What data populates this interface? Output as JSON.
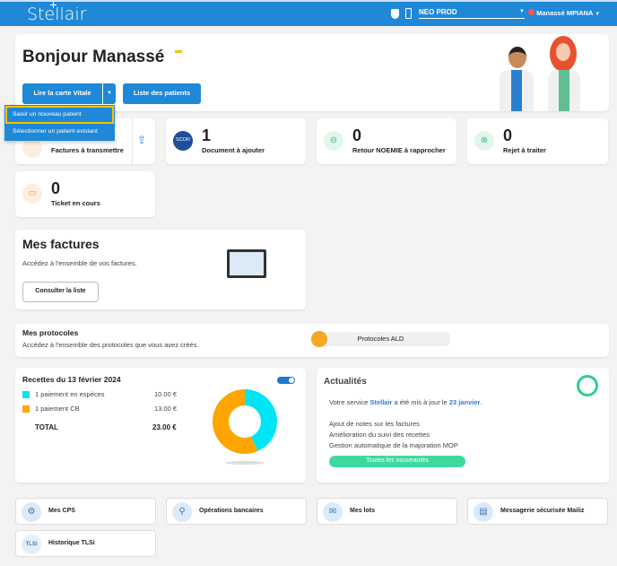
{
  "header": {
    "logo": "Stellair",
    "environment": "NEO PROD",
    "user": "Manassé MPIANA"
  },
  "welcome": {
    "greeting": "Bonjour Manassé",
    "read_card_button": "Lire la carte Vitale",
    "patients_button": "Liste des patients",
    "dropdown": [
      "Saisir un nouveau patient",
      "Sélectionner un patient existant"
    ]
  },
  "stats": [
    {
      "value": "",
      "label": "Factures à transmettre"
    },
    {
      "value": "1",
      "label": "Document à ajouter",
      "icon_text": "SCOR"
    },
    {
      "value": "0",
      "label": "Retour NOEMIE à rapprocher"
    },
    {
      "value": "0",
      "label": "Rejet à traiter"
    },
    {
      "value": "0",
      "label": "Ticket en cours"
    }
  ],
  "invoices": {
    "title": "Mes factures",
    "desc": "Accédez à l'ensemble de vos factures.",
    "button": "Consulter la liste"
  },
  "protocols": {
    "title": "Mes protocoles",
    "desc": "Accédez à l'ensemble des protocoles que vous avez créés.",
    "button": "Protocoles ALD"
  },
  "receipts": {
    "title": "Recettes du 13 février 2024",
    "toggle_on": true,
    "rows": [
      {
        "label": "1 paiement en espèces",
        "amount": "10.00 €",
        "color": "#00e5f5"
      },
      {
        "label": "1 paiement CB",
        "amount": "13.00 €",
        "color": "#ffa500"
      }
    ],
    "total_label": "TOTAL",
    "total": "23.00 €"
  },
  "chart_data": {
    "type": "pie",
    "categories": [
      "1 paiement en espèces",
      "1 paiement CB"
    ],
    "values": [
      10,
      13
    ],
    "colors": [
      "#00e5f5",
      "#ffa500"
    ]
  },
  "news": {
    "title": "Actualités",
    "intro_pre": "Votre service ",
    "intro_brand": "Stellair",
    "intro_mid": " a été mis à jour le ",
    "intro_date": "23 janvier",
    "intro_end": ".",
    "items": [
      "Ajout de notes sur les factures",
      "Amélioration du suivi des recettes",
      "Gestion automatique de la majoration MOP"
    ],
    "button": "Toutes les nouveautés"
  },
  "links": [
    "Mes CPS",
    "Opérations bancaires",
    "Mes lots",
    "Messagerie sécurisée Mailiz",
    "Historique TLSi"
  ]
}
